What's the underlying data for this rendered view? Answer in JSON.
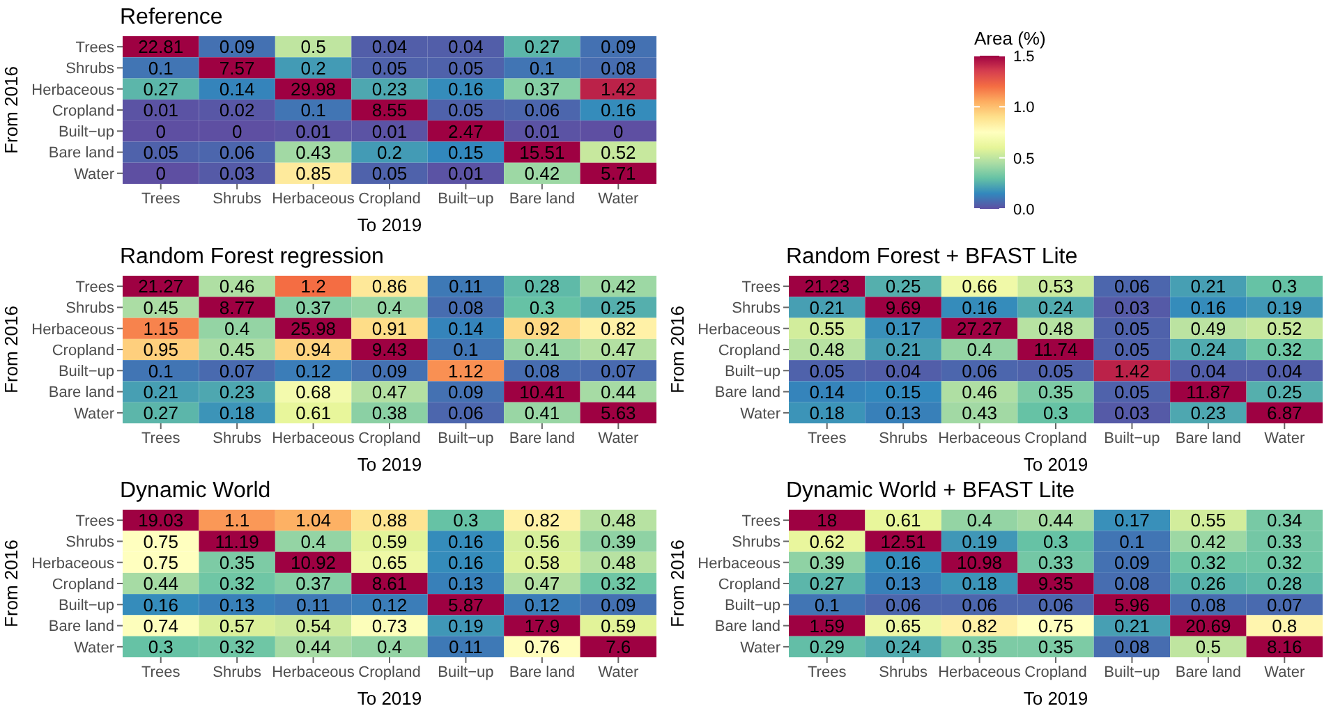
{
  "chart_data": [
    {
      "type": "heatmap",
      "title": "Reference",
      "xlabel": "To 2019",
      "ylabel": "From 2016",
      "clabel": "Area (%)",
      "clim": [
        0,
        1.5
      ],
      "cticks": [
        {
          "value": 0,
          "label": "0.0"
        },
        {
          "value": 0.5,
          "label": "0.5"
        },
        {
          "value": 1,
          "label": "1.0"
        },
        {
          "value": 1.5,
          "label": "1.5"
        }
      ],
      "data_labels": true,
      "categories": [
        "Trees",
        "Shrubs",
        "Herbaceous",
        "Cropland",
        "Built−up",
        "Bare land",
        "Water"
      ],
      "y_categories": [
        "Trees",
        "Shrubs",
        "Herbaceous",
        "Cropland",
        "Built−up",
        "Bare land",
        "Water"
      ],
      "cells": [
        [
          22.81,
          0.09,
          0.5,
          0.04,
          0.04,
          0.27,
          0.09
        ],
        [
          0.1,
          7.57,
          0.2,
          0.05,
          0.05,
          0.1,
          0.08
        ],
        [
          0.27,
          0.14,
          29.98,
          0.23,
          0.16,
          0.37,
          1.42
        ],
        [
          0.01,
          0.02,
          0.1,
          8.55,
          0.05,
          0.06,
          0.16
        ],
        [
          0,
          0,
          0.01,
          0.01,
          2.47,
          0.01,
          0
        ],
        [
          0.05,
          0.06,
          0.43,
          0.2,
          0.15,
          15.51,
          0.52
        ],
        [
          0,
          0.03,
          0.85,
          0.05,
          0.01,
          0.42,
          5.71
        ]
      ]
    },
    {
      "type": "heatmap",
      "title": "Random Forest regression",
      "xlabel": "To 2019",
      "ylabel": "From 2016",
      "data_labels": true,
      "categories": [
        "Trees",
        "Shrubs",
        "Herbaceous",
        "Cropland",
        "Built−up",
        "Bare land",
        "Water"
      ],
      "y_categories": [
        "Trees",
        "Shrubs",
        "Herbaceous",
        "Cropland",
        "Built−up",
        "Bare land",
        "Water"
      ],
      "cells": [
        [
          21.27,
          0.46,
          1.2,
          0.86,
          0.11,
          0.28,
          0.42
        ],
        [
          0.45,
          8.77,
          0.37,
          0.4,
          0.08,
          0.3,
          0.25
        ],
        [
          1.15,
          0.4,
          25.98,
          0.91,
          0.14,
          0.92,
          0.82
        ],
        [
          0.95,
          0.45,
          0.94,
          9.43,
          0.1,
          0.41,
          0.47
        ],
        [
          0.1,
          0.07,
          0.12,
          0.09,
          1.12,
          0.08,
          0.07
        ],
        [
          0.21,
          0.23,
          0.68,
          0.47,
          0.09,
          10.41,
          0.44
        ],
        [
          0.27,
          0.18,
          0.61,
          0.38,
          0.06,
          0.41,
          5.63
        ]
      ]
    },
    {
      "type": "heatmap",
      "title": "Random Forest + BFAST Lite",
      "xlabel": "To 2019",
      "ylabel": "From 2016",
      "data_labels": true,
      "categories": [
        "Trees",
        "Shrubs",
        "Herbaceous",
        "Cropland",
        "Built−up",
        "Bare land",
        "Water"
      ],
      "y_categories": [
        "Trees",
        "Shrubs",
        "Herbaceous",
        "Cropland",
        "Built−up",
        "Bare land",
        "Water"
      ],
      "cells": [
        [
          21.23,
          0.25,
          0.66,
          0.53,
          0.06,
          0.21,
          0.3
        ],
        [
          0.21,
          9.69,
          0.16,
          0.24,
          0.03,
          0.16,
          0.19
        ],
        [
          0.55,
          0.17,
          27.27,
          0.48,
          0.05,
          0.49,
          0.52
        ],
        [
          0.48,
          0.21,
          0.4,
          11.74,
          0.05,
          0.24,
          0.32
        ],
        [
          0.05,
          0.04,
          0.06,
          0.05,
          1.42,
          0.04,
          0.04
        ],
        [
          0.14,
          0.15,
          0.46,
          0.35,
          0.05,
          11.87,
          0.25
        ],
        [
          0.18,
          0.13,
          0.43,
          0.3,
          0.03,
          0.23,
          6.87
        ]
      ]
    },
    {
      "type": "heatmap",
      "title": "Dynamic World",
      "xlabel": "To 2019",
      "ylabel": "From 2016",
      "data_labels": true,
      "categories": [
        "Trees",
        "Shrubs",
        "Herbaceous",
        "Cropland",
        "Built−up",
        "Bare land",
        "Water"
      ],
      "y_categories": [
        "Trees",
        "Shrubs",
        "Herbaceous",
        "Cropland",
        "Built−up",
        "Bare land",
        "Water"
      ],
      "cells": [
        [
          19.03,
          1.1,
          1.04,
          0.88,
          0.3,
          0.82,
          0.48
        ],
        [
          0.75,
          11.19,
          0.4,
          0.59,
          0.16,
          0.56,
          0.39
        ],
        [
          0.75,
          0.35,
          10.92,
          0.65,
          0.16,
          0.58,
          0.48
        ],
        [
          0.44,
          0.32,
          0.37,
          8.61,
          0.13,
          0.47,
          0.32
        ],
        [
          0.16,
          0.13,
          0.11,
          0.12,
          5.87,
          0.12,
          0.09
        ],
        [
          0.74,
          0.57,
          0.54,
          0.73,
          0.19,
          17.9,
          0.59
        ],
        [
          0.3,
          0.32,
          0.44,
          0.4,
          0.11,
          0.76,
          7.6
        ]
      ]
    },
    {
      "type": "heatmap",
      "title": "Dynamic World + BFAST Lite",
      "xlabel": "To 2019",
      "ylabel": "From 2016",
      "data_labels": true,
      "categories": [
        "Trees",
        "Shrubs",
        "Herbaceous",
        "Cropland",
        "Built−up",
        "Bare land",
        "Water"
      ],
      "y_categories": [
        "Trees",
        "Shrubs",
        "Herbaceous",
        "Cropland",
        "Built−up",
        "Bare land",
        "Water"
      ],
      "cells": [
        [
          18,
          0.61,
          0.4,
          0.44,
          0.17,
          0.55,
          0.34
        ],
        [
          0.62,
          12.51,
          0.19,
          0.3,
          0.1,
          0.42,
          0.33
        ],
        [
          0.39,
          0.16,
          10.98,
          0.33,
          0.09,
          0.32,
          0.32
        ],
        [
          0.27,
          0.13,
          0.18,
          9.35,
          0.08,
          0.26,
          0.28
        ],
        [
          0.1,
          0.06,
          0.06,
          0.06,
          5.96,
          0.08,
          0.07
        ],
        [
          1.59,
          0.65,
          0.82,
          0.75,
          0.21,
          20.69,
          0.8
        ],
        [
          0.29,
          0.24,
          0.35,
          0.35,
          0.08,
          0.5,
          8.16
        ]
      ]
    }
  ]
}
